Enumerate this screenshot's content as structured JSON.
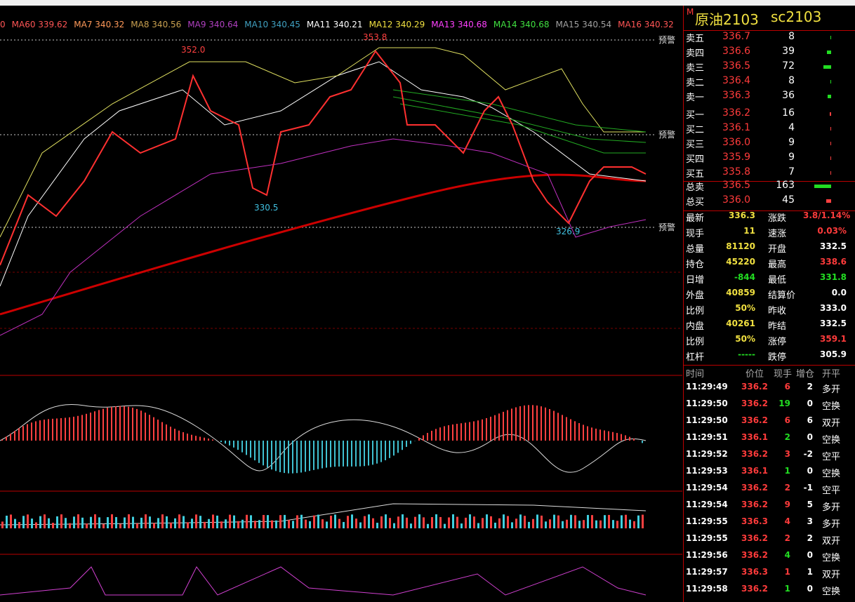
{
  "ma_legend": [
    {
      "text": "0",
      "color": "#ff5555"
    },
    {
      "text": "MA60 339.62",
      "color": "#ff5555"
    },
    {
      "text": "MA7 340.32",
      "color": "#ff9a5a"
    },
    {
      "text": "MA8 340.56",
      "color": "#c8a050"
    },
    {
      "text": "MA9 340.64",
      "color": "#b040c0"
    },
    {
      "text": "MA10 340.45",
      "color": "#40a0c0"
    },
    {
      "text": "MA11 340.21",
      "color": "#ffffff"
    },
    {
      "text": "MA12 340.29",
      "color": "#f0e040"
    },
    {
      "text": "MA13 340.68",
      "color": "#ff40ff"
    },
    {
      "text": "MA14 340.68",
      "color": "#40e040"
    },
    {
      "text": "MA15 340.54",
      "color": "#a0a0a0"
    },
    {
      "text": "MA16 340.32",
      "color": "#ff5555"
    }
  ],
  "chart_labels": {
    "high1": "352.0",
    "high2": "353.8",
    "low1": "330.5",
    "low2": "326.9"
  },
  "alerts": [
    "预警",
    "预警",
    "预警"
  ],
  "header": {
    "mark": "M",
    "title": "原油2103",
    "code": "sc2103"
  },
  "order_book": [
    [
      "卖五",
      "336.7",
      "8"
    ],
    [
      "卖四",
      "336.6",
      "39"
    ],
    [
      "卖三",
      "336.5",
      "72"
    ],
    [
      "卖二",
      "336.4",
      "8"
    ],
    [
      "卖一",
      "336.3",
      "36"
    ],
    [
      "买一",
      "336.2",
      "16"
    ],
    [
      "买二",
      "336.1",
      "4"
    ],
    [
      "买三",
      "336.0",
      "9"
    ],
    [
      "买四",
      "335.9",
      "9"
    ],
    [
      "买五",
      "335.8",
      "7"
    ]
  ],
  "totals": [
    [
      "总卖",
      "336.5",
      "163"
    ],
    [
      "总买",
      "336.0",
      "45"
    ]
  ],
  "stats": [
    [
      "最新",
      "336.3",
      "涨跌",
      "3.8/1.14%"
    ],
    [
      "现手",
      "11",
      "速涨",
      "0.03%"
    ],
    [
      "总量",
      "81120",
      "开盘",
      "332.5"
    ],
    [
      "持仓",
      "45220",
      "最高",
      "338.6"
    ],
    [
      "日增",
      "-844",
      "最低",
      "331.8"
    ],
    [
      "外盘",
      "40859",
      "结算价",
      "0.0"
    ],
    [
      "比例",
      "50%",
      "昨收",
      "333.0"
    ],
    [
      "内盘",
      "40261",
      "昨结",
      "332.5"
    ],
    [
      "比例",
      "50%",
      "涨停",
      "359.1"
    ],
    [
      "杠杆",
      "-----",
      "跌停",
      "305.9"
    ]
  ],
  "trades_header": [
    "时间",
    "价位",
    "现手",
    "增仓",
    "开平"
  ],
  "trades": [
    [
      "11:29:49",
      "336.2",
      "6",
      "2",
      "多开"
    ],
    [
      "11:29:50",
      "336.2",
      "19",
      "0",
      "空换"
    ],
    [
      "11:29:50",
      "336.2",
      "6",
      "6",
      "双开"
    ],
    [
      "11:29:51",
      "336.1",
      "2",
      "0",
      "空换"
    ],
    [
      "11:29:52",
      "336.2",
      "3",
      "-2",
      "空平"
    ],
    [
      "11:29:53",
      "336.1",
      "1",
      "0",
      "空换"
    ],
    [
      "11:29:54",
      "336.2",
      "2",
      "-1",
      "空平"
    ],
    [
      "11:29:54",
      "336.2",
      "9",
      "5",
      "多开"
    ],
    [
      "11:29:55",
      "336.3",
      "4",
      "3",
      "多开"
    ],
    [
      "11:29:55",
      "336.2",
      "2",
      "2",
      "双开"
    ],
    [
      "11:29:56",
      "336.2",
      "4",
      "0",
      "空换"
    ],
    [
      "11:29:57",
      "336.3",
      "1",
      "1",
      "双开"
    ],
    [
      "11:29:58",
      "336.2",
      "1",
      "0",
      "空换"
    ]
  ]
}
